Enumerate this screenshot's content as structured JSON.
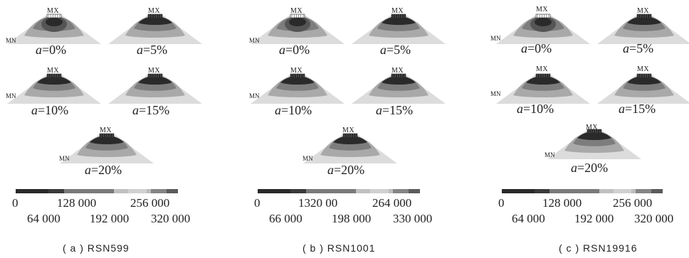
{
  "mx_label": "MX",
  "mn_label": "MN",
  "a_symbol": "a",
  "panels": [
    {
      "caption": "( a )  RSN599",
      "alpha": [
        "=0%",
        "=5%",
        "=10%",
        "=15%",
        "=20%"
      ],
      "ticks_top": [
        "0",
        "128 000",
        "256 000"
      ],
      "ticks_bottom": [
        "64 000",
        "192 000",
        "320 000"
      ]
    },
    {
      "caption": "( b )  RSN1001",
      "alpha": [
        "=0%",
        "=5%",
        "=10%",
        "=15%",
        "=20%"
      ],
      "ticks_top": [
        "0",
        "1320 00",
        "264 000"
      ],
      "ticks_bottom": [
        "66 000",
        "198 000",
        "330 000"
      ]
    },
    {
      "caption": "( c )  RSN19916",
      "alpha": [
        "=0%",
        "=5%",
        "=10%",
        "=15%",
        "=20%"
      ],
      "ticks_top": [
        "0",
        "128 000",
        "256 000"
      ],
      "ticks_bottom": [
        "64 000",
        "192 000",
        "320 000"
      ]
    }
  ],
  "colors": {
    "band_dark": "#2a2a2a",
    "band_mid_dark": "#555555",
    "band_mid": "#7d7d7d",
    "band_light": "#a9a9a9",
    "band_lightest": "#dcdcdc",
    "background": "#ffffff"
  },
  "legend_bar_colors": [
    "#2a2a2a",
    "#3a3a3a",
    "#7a7a7a",
    "#c0c0c0",
    "#d0d0d0",
    "#bdbdbd",
    "#858585",
    "#5b5b5b"
  ]
}
